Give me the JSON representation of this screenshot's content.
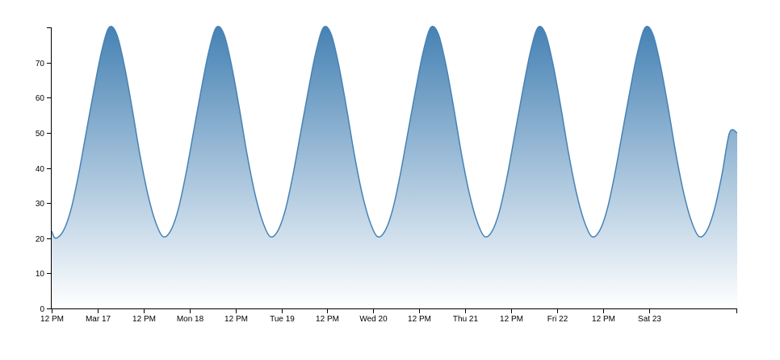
{
  "chart_data": {
    "type": "area",
    "title": "",
    "xlabel": "",
    "ylabel": "",
    "x_range": [
      "2024-03-16 12:00",
      "2024-03-23 23:00"
    ],
    "ylim": [
      0,
      80
    ],
    "grid": false,
    "legend": "none",
    "y_ticks": [
      0,
      10,
      20,
      30,
      40,
      50,
      60,
      70
    ],
    "x_ticks": [
      {
        "at": "2024-03-16 12:00",
        "label": "12 PM"
      },
      {
        "at": "2024-03-17 00:00",
        "label": "Mar 17"
      },
      {
        "at": "2024-03-17 12:00",
        "label": "12 PM"
      },
      {
        "at": "2024-03-18 00:00",
        "label": "Mon 18"
      },
      {
        "at": "2024-03-18 12:00",
        "label": "12 PM"
      },
      {
        "at": "2024-03-19 00:00",
        "label": "Tue 19"
      },
      {
        "at": "2024-03-19 12:00",
        "label": "12 PM"
      },
      {
        "at": "2024-03-20 00:00",
        "label": "Wed 20"
      },
      {
        "at": "2024-03-20 12:00",
        "label": "12 PM"
      },
      {
        "at": "2024-03-21 00:00",
        "label": "Thu 21"
      },
      {
        "at": "2024-03-21 12:00",
        "label": "12 PM"
      },
      {
        "at": "2024-03-22 00:00",
        "label": "Fri 22"
      },
      {
        "at": "2024-03-22 12:00",
        "label": "12 PM"
      },
      {
        "at": "2024-03-23 00:00",
        "label": "Sat 23"
      }
    ],
    "series": [
      {
        "x": [
          "2024-03-16 12:00",
          "2024-03-16 13:00",
          "2024-03-16 15:00",
          "2024-03-16 17:00",
          "2024-03-16 19:00",
          "2024-03-16 21:00",
          "2024-03-16 23:00",
          "2024-03-17 01:00",
          "2024-03-17 03:00",
          "2024-03-17 05:00",
          "2024-03-17 07:00",
          "2024-03-17 09:00",
          "2024-03-17 11:00",
          "2024-03-17 13:00",
          "2024-03-17 15:00",
          "2024-03-17 17:00",
          "2024-03-17 19:00",
          "2024-03-17 21:00",
          "2024-03-17 23:00",
          "2024-03-18 01:00",
          "2024-03-18 03:00",
          "2024-03-18 05:00",
          "2024-03-18 07:00",
          "2024-03-18 09:00",
          "2024-03-18 11:00",
          "2024-03-18 13:00",
          "2024-03-18 15:00",
          "2024-03-18 17:00",
          "2024-03-18 19:00",
          "2024-03-18 21:00",
          "2024-03-18 23:00",
          "2024-03-19 01:00",
          "2024-03-19 03:00",
          "2024-03-19 05:00",
          "2024-03-19 07:00",
          "2024-03-19 09:00",
          "2024-03-19 11:00",
          "2024-03-19 13:00",
          "2024-03-19 15:00",
          "2024-03-19 17:00",
          "2024-03-19 19:00",
          "2024-03-19 21:00",
          "2024-03-19 23:00",
          "2024-03-20 01:00",
          "2024-03-20 03:00",
          "2024-03-20 05:00",
          "2024-03-20 07:00",
          "2024-03-20 09:00",
          "2024-03-20 11:00",
          "2024-03-20 13:00",
          "2024-03-20 15:00",
          "2024-03-20 17:00",
          "2024-03-20 19:00",
          "2024-03-20 21:00",
          "2024-03-20 23:00",
          "2024-03-21 01:00",
          "2024-03-21 03:00",
          "2024-03-21 05:00",
          "2024-03-21 07:00",
          "2024-03-21 09:00",
          "2024-03-21 11:00",
          "2024-03-21 13:00",
          "2024-03-21 15:00",
          "2024-03-21 17:00",
          "2024-03-21 19:00",
          "2024-03-21 21:00",
          "2024-03-21 23:00",
          "2024-03-22 01:00",
          "2024-03-22 03:00",
          "2024-03-22 05:00",
          "2024-03-22 07:00",
          "2024-03-22 09:00",
          "2024-03-22 11:00",
          "2024-03-22 13:00",
          "2024-03-22 15:00",
          "2024-03-22 17:00",
          "2024-03-22 19:00",
          "2024-03-22 21:00",
          "2024-03-22 23:00",
          "2024-03-23 01:00",
          "2024-03-23 03:00",
          "2024-03-23 05:00",
          "2024-03-23 07:00",
          "2024-03-23 09:00",
          "2024-03-23 11:00",
          "2024-03-23 13:00",
          "2024-03-23 15:00",
          "2024-03-23 17:00",
          "2024-03-23 19:00",
          "2024-03-23 21:00",
          "2024-03-23 23:00"
        ],
        "values": [
          22.0,
          20.0,
          22.0,
          28.0,
          38.0,
          50.0,
          62.0,
          73.0,
          80.0,
          78.0,
          69.0,
          57.0,
          44.0,
          33.0,
          25.0,
          20.5,
          22.0,
          28.0,
          38.0,
          50.0,
          62.0,
          73.0,
          80.0,
          78.0,
          69.0,
          57.0,
          44.0,
          33.0,
          25.0,
          20.5,
          22.0,
          28.0,
          38.0,
          50.0,
          62.0,
          73.0,
          80.0,
          78.0,
          69.0,
          57.0,
          44.0,
          33.0,
          25.0,
          20.5,
          22.0,
          28.0,
          38.0,
          50.0,
          62.0,
          73.0,
          80.0,
          78.0,
          69.0,
          57.0,
          44.0,
          33.0,
          25.0,
          20.5,
          22.0,
          28.0,
          38.0,
          50.0,
          62.0,
          73.0,
          80.0,
          78.0,
          69.0,
          57.0,
          44.0,
          33.0,
          25.0,
          20.5,
          22.0,
          28.0,
          38.0,
          50.0,
          62.0,
          73.0,
          80.0,
          78.0,
          69.0,
          57.0,
          44.0,
          33.0,
          25.0,
          20.5,
          22.0,
          28.0,
          38.0,
          50.0,
          50.0
        ]
      }
    ],
    "colors": {
      "line": "#4682b4",
      "fill_top": "#4682b4",
      "fill_bottom": "#ffffff",
      "axis": "#000000"
    }
  }
}
